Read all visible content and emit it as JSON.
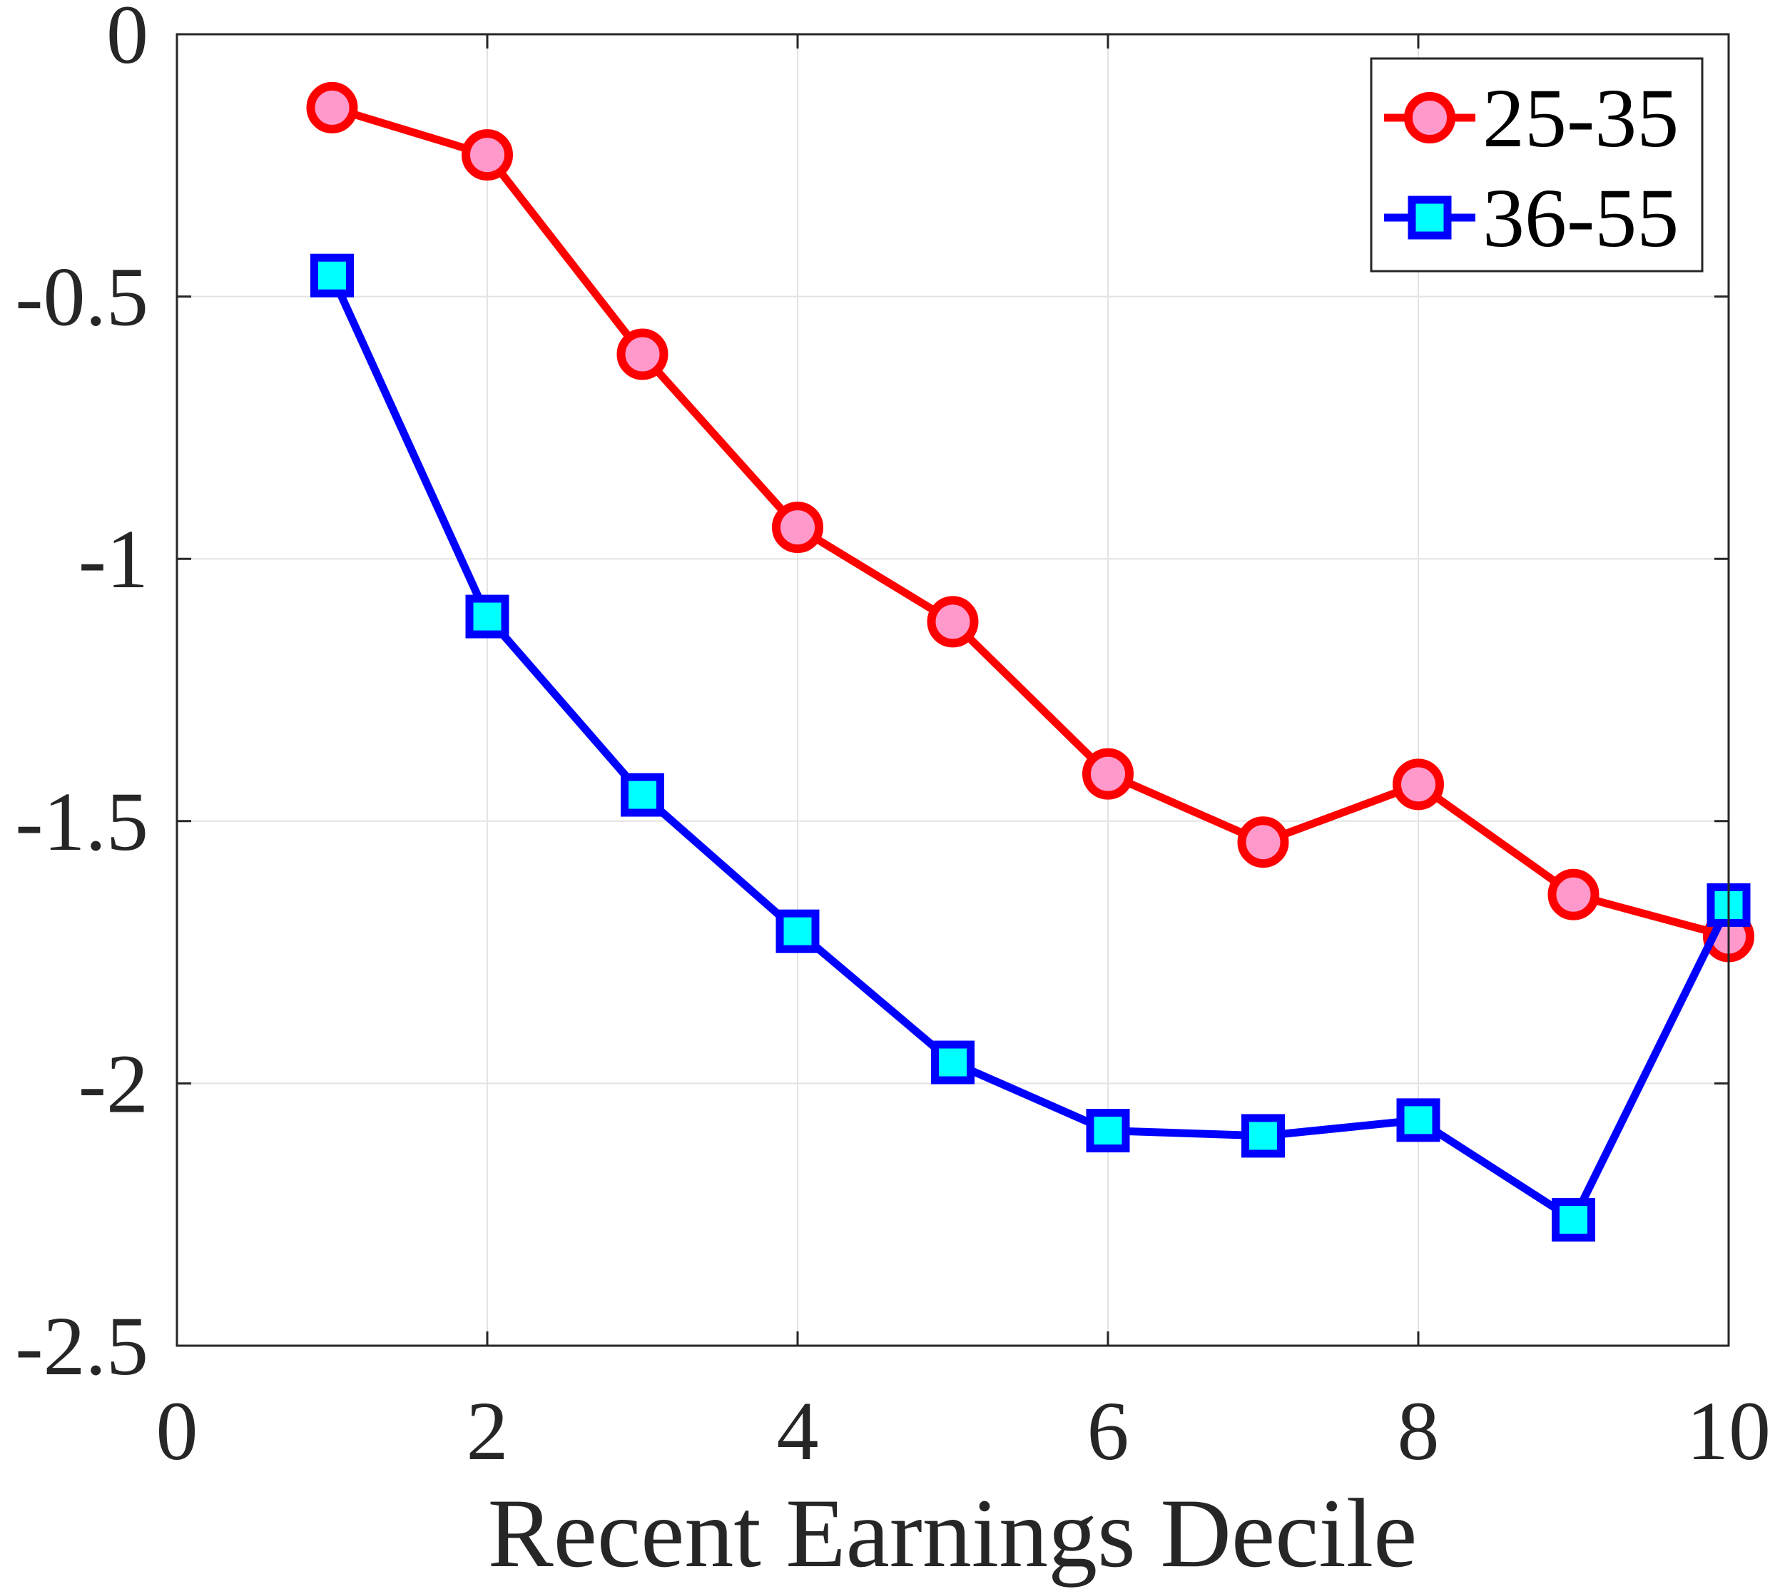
{
  "chart_data": {
    "type": "line",
    "xlabel": "Recent Earnings Decile",
    "ylabel": "",
    "xlim": [
      0,
      10
    ],
    "ylim": [
      -2.5,
      0
    ],
    "x_ticks": [
      "0",
      "2",
      "4",
      "6",
      "8",
      "10"
    ],
    "y_ticks": [
      "0",
      "-0.5",
      "-1",
      "-1.5",
      "-2",
      "-2.5"
    ],
    "grid": true,
    "legend_position": "top-right",
    "x": [
      1,
      2,
      3,
      4,
      5,
      6,
      7,
      8,
      9,
      10
    ],
    "series": [
      {
        "name": "25-35",
        "marker": "circle",
        "line_color": "#ff0000",
        "marker_fill": "#ff99cc",
        "values": [
          -0.14,
          -0.23,
          -0.61,
          -0.94,
          -1.12,
          -1.41,
          -1.54,
          -1.43,
          -1.64,
          -1.72
        ]
      },
      {
        "name": "36-55",
        "marker": "square",
        "line_color": "#0000ff",
        "marker_fill": "#00ffff",
        "values": [
          -0.46,
          -1.11,
          -1.45,
          -1.71,
          -1.96,
          -2.09,
          -2.1,
          -2.07,
          -2.26,
          -1.66
        ]
      }
    ]
  }
}
